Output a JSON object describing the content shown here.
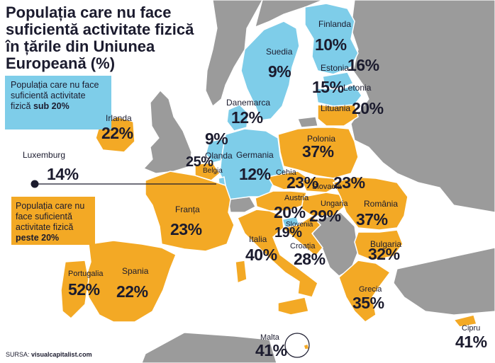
{
  "title": "Populația care nu face suficientă activitate fizică în țările din Uniunea Europeană (%)",
  "legend": {
    "low_text": "Populația care nu face suficientă activitate fizică",
    "low_threshold": "sub 20%",
    "high_text": "Populația care nu face suficientă activitate fizică",
    "high_threshold": "peste 20%"
  },
  "colors": {
    "low": "#7ecde9",
    "high": "#f3a925",
    "non_eu": "#9b9b9b",
    "sea": "#ffffff",
    "text": "#1b1b2e"
  },
  "countries": [
    {
      "id": "finlanda",
      "name": "Finlanda",
      "value": "10%",
      "category": "low"
    },
    {
      "id": "suedia",
      "name": "Suedia",
      "value": "9%",
      "category": "low"
    },
    {
      "id": "estonia",
      "name": "Estonia",
      "value": "16%",
      "category": "low"
    },
    {
      "id": "letonia",
      "name": "Letonia",
      "value": "15%",
      "category": "low"
    },
    {
      "id": "lituania",
      "name": "Lituania",
      "value": "20%",
      "category": "high"
    },
    {
      "id": "danemarca",
      "name": "Danemarca",
      "value": "12%",
      "category": "low"
    },
    {
      "id": "irlanda",
      "name": "Irlanda",
      "value": "22%",
      "category": "high"
    },
    {
      "id": "olanda",
      "name": "Olanda",
      "value": "9%",
      "category": "low"
    },
    {
      "id": "belgia",
      "name": "Belgia",
      "value": "25%",
      "category": "high"
    },
    {
      "id": "germania",
      "name": "Germania",
      "value": "12%",
      "category": "low"
    },
    {
      "id": "polonia",
      "name": "Polonia",
      "value": "37%",
      "category": "high"
    },
    {
      "id": "luxemburg",
      "name": "Luxemburg",
      "value": "14%",
      "category": "low"
    },
    {
      "id": "cehia",
      "name": "Cehia",
      "value": "23%",
      "category": "high"
    },
    {
      "id": "slovacia",
      "name": "Slovacia",
      "value": "23%",
      "category": "high"
    },
    {
      "id": "austria",
      "name": "Austria",
      "value": "20%",
      "category": "high"
    },
    {
      "id": "ungaria",
      "name": "Ungaria",
      "value": "29%",
      "category": "high"
    },
    {
      "id": "romania",
      "name": "România",
      "value": "37%",
      "category": "high"
    },
    {
      "id": "franta",
      "name": "Franța",
      "value": "23%",
      "category": "high"
    },
    {
      "id": "slovenia",
      "name": "Slovenia",
      "value": "19%",
      "category": "low"
    },
    {
      "id": "croatia",
      "name": "Croația",
      "value": "28%",
      "category": "high"
    },
    {
      "id": "italia",
      "name": "Italia",
      "value": "40%",
      "category": "high"
    },
    {
      "id": "bulgaria",
      "name": "Bulgaria",
      "value": "32%",
      "category": "high"
    },
    {
      "id": "portugalia",
      "name": "Portugalia",
      "value": "52%",
      "category": "high"
    },
    {
      "id": "spania",
      "name": "Spania",
      "value": "22%",
      "category": "high"
    },
    {
      "id": "grecia",
      "name": "Grecia",
      "value": "35%",
      "category": "high"
    },
    {
      "id": "malta",
      "name": "Malta",
      "value": "41%",
      "category": "high"
    },
    {
      "id": "cipru",
      "name": "Cipru",
      "value": "41%",
      "category": "high"
    }
  ],
  "source_label": "SURSA:",
  "source_value": "visualcapitalist.com"
}
